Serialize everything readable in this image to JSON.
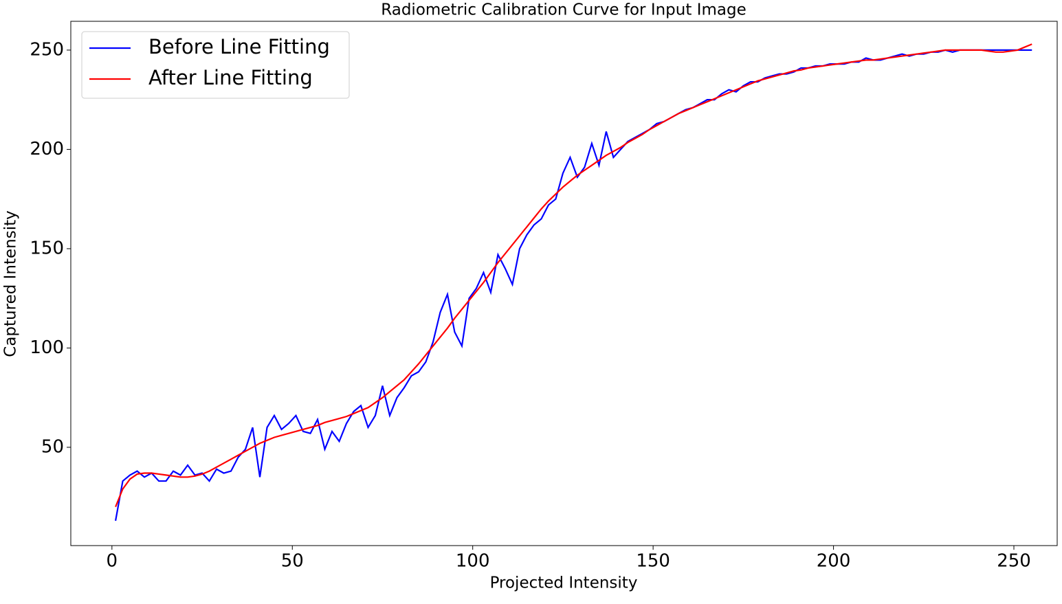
{
  "chart_data": {
    "type": "line",
    "title": "Radiometric Calibration Curve for Input Image",
    "x_label": "Projected Intensity",
    "y_label": "Captured Intensity",
    "x": [
      1,
      3,
      5,
      7,
      9,
      11,
      13,
      15,
      17,
      19,
      21,
      23,
      25,
      27,
      29,
      31,
      33,
      35,
      37,
      39,
      41,
      43,
      45,
      47,
      49,
      51,
      53,
      55,
      57,
      59,
      61,
      63,
      65,
      67,
      69,
      71,
      73,
      75,
      77,
      79,
      81,
      83,
      85,
      87,
      89,
      91,
      93,
      95,
      97,
      99,
      101,
      103,
      105,
      107,
      109,
      111,
      113,
      115,
      117,
      119,
      121,
      123,
      125,
      127,
      129,
      131,
      133,
      135,
      137,
      139,
      141,
      143,
      145,
      147,
      149,
      151,
      153,
      155,
      157,
      159,
      161,
      163,
      165,
      167,
      169,
      171,
      173,
      175,
      177,
      179,
      181,
      183,
      185,
      187,
      189,
      191,
      193,
      195,
      197,
      199,
      201,
      203,
      205,
      207,
      209,
      211,
      213,
      215,
      217,
      219,
      221,
      223,
      225,
      227,
      229,
      231,
      233,
      235,
      237,
      239,
      241,
      243,
      245,
      247,
      249,
      251,
      253,
      255
    ],
    "series": [
      {
        "name": "Before Line Fitting",
        "color": "#0000ff",
        "values": [
          13,
          33,
          36,
          38,
          35,
          37,
          33,
          33,
          38,
          36,
          41,
          36,
          37,
          33,
          39,
          37,
          38,
          45,
          49,
          60,
          35,
          60,
          66,
          59,
          62,
          66,
          58,
          57,
          64,
          49,
          58,
          53,
          62,
          68,
          71,
          60,
          66,
          81,
          66,
          75,
          80,
          86,
          88,
          93,
          103,
          118,
          127,
          108,
          101,
          125,
          130,
          138,
          128,
          147,
          140,
          132,
          150,
          157,
          162,
          165,
          172,
          175,
          188,
          196,
          186,
          191,
          203,
          192,
          209,
          196,
          200,
          204,
          206,
          208,
          210,
          213,
          214,
          216,
          218,
          220,
          221,
          223,
          225,
          225,
          228,
          230,
          229,
          232,
          234,
          234,
          236,
          237,
          238,
          238,
          239,
          241,
          241,
          242,
          242,
          243,
          243,
          243,
          244,
          244,
          246,
          245,
          245,
          246,
          247,
          248,
          247,
          248,
          248,
          249,
          249,
          250,
          249,
          250,
          250,
          250,
          250,
          250,
          250,
          250,
          250,
          250,
          250,
          250
        ]
      },
      {
        "name": "After Line Fitting",
        "color": "#ff0000",
        "values": [
          20,
          29,
          34,
          36.5,
          37,
          37,
          36.5,
          36,
          35.5,
          35,
          35,
          35.5,
          36.5,
          38,
          40,
          42,
          44,
          46,
          48,
          50,
          52,
          53.5,
          55,
          56,
          57,
          58,
          59,
          60,
          61,
          62.5,
          63.5,
          64.5,
          65.5,
          67,
          68.5,
          70,
          72.5,
          75,
          78,
          81,
          84,
          88,
          92,
          96.5,
          101,
          105.5,
          110,
          115,
          119.5,
          124,
          128.5,
          133,
          138,
          143,
          147.5,
          152,
          156.5,
          161,
          165.5,
          170,
          174,
          177.5,
          181,
          184,
          187,
          189.5,
          192,
          194.5,
          197,
          199,
          201,
          203.5,
          205.5,
          207.5,
          210,
          212,
          214,
          216,
          218,
          219.5,
          221,
          222.5,
          224,
          225.5,
          227,
          228.5,
          230,
          231.5,
          233,
          234.5,
          235.5,
          236.5,
          237.5,
          238.5,
          239.5,
          240,
          241,
          241.5,
          242,
          242.5,
          243,
          243.5,
          244,
          244.5,
          245,
          245,
          245.5,
          246,
          246.5,
          247,
          247.5,
          248,
          248.5,
          249,
          249.5,
          250,
          250,
          250,
          250,
          250,
          250,
          249.5,
          249,
          249,
          249.5,
          250,
          251.5,
          253
        ]
      }
    ],
    "xlim": [
      -11.4,
      262
    ],
    "ylim": [
      0.5,
      264.5
    ],
    "xticks": [
      0,
      50,
      100,
      150,
      200,
      250
    ],
    "yticks": [
      50,
      100,
      150,
      200,
      250
    ],
    "legend": "upper left"
  }
}
